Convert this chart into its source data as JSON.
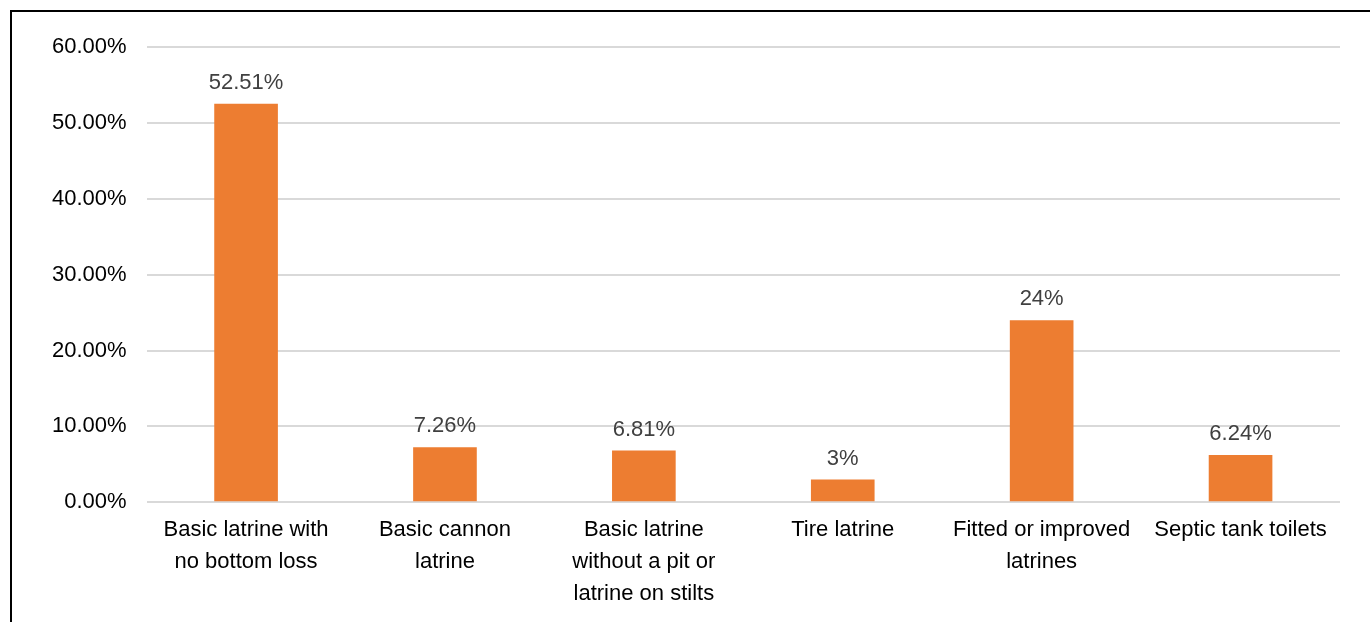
{
  "chart_data": {
    "type": "bar",
    "categories": [
      "Basic latrine with no bottom loss",
      "Basic cannon latrine",
      "Basic latrine without a pit or latrine on stilts",
      "Tire latrine",
      "Fitted or improved latrines",
      "Septic tank toilets"
    ],
    "values": [
      52.51,
      7.26,
      6.81,
      3,
      24,
      6.24
    ],
    "value_labels": [
      "52.51%",
      "7.26%",
      "6.81%",
      "3%",
      "24%",
      "6.24%"
    ],
    "color": "#ed7d31",
    "ylim": [
      0,
      60
    ],
    "yticks": [
      {
        "value": 0,
        "label": "0.00%"
      },
      {
        "value": 10,
        "label": "10.00%"
      },
      {
        "value": 20,
        "label": "20.00%"
      },
      {
        "value": 30,
        "label": "30.00%"
      },
      {
        "value": 40,
        "label": "40.00%"
      },
      {
        "value": 50,
        "label": "50.00%"
      },
      {
        "value": 60,
        "label": "60.00%"
      }
    ],
    "grid": "y",
    "legend": false
  }
}
